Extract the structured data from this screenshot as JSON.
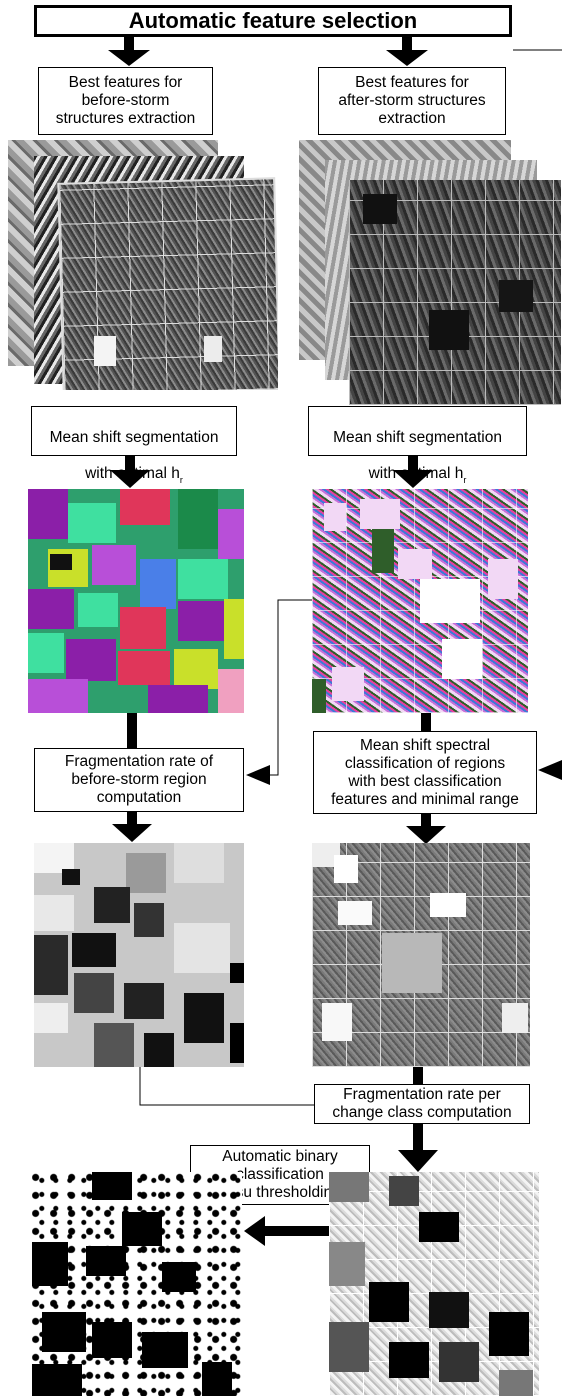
{
  "title": "Automatic feature selection",
  "left": {
    "features_box": "Best features for\nbefore-storm\nstructures extraction",
    "segmentation_box": {
      "line1": "Mean shift segmentation",
      "line2_main": "with optimal h",
      "line2_sub": "r"
    },
    "fragmentation_box": "Fragmentation rate of\nbefore-storm region\ncomputation"
  },
  "right": {
    "features_box": "Best features for\nafter-storm structures\nextraction",
    "segmentation_box": {
      "line1": "Mean shift segmentation",
      "line2_main": "with optimal h",
      "line2_sub": "r"
    },
    "classification_box": "Mean shift spectral\nclassification of regions\nwith best classification\nfeatures and minimal range"
  },
  "change_box": "Fragmentation rate per\nchange class computation",
  "otsu_box": "Automatic binary\nclassification\n(Otsu thresholding)",
  "colors": {
    "segment_palette": [
      "#2e9f6d",
      "#8b1fa8",
      "#3fe0a0",
      "#e0365a",
      "#b84fd8",
      "#c9e02a",
      "#4a7fe8",
      "#1b8a4a",
      "#f0a0c0",
      "#111111"
    ],
    "after_segment_palette": [
      "#f2d8f5",
      "#c76fd8",
      "#6b2a8c",
      "#2f5e2a",
      "#e83fa0",
      "#3b7ad8",
      "#ffffff"
    ]
  }
}
